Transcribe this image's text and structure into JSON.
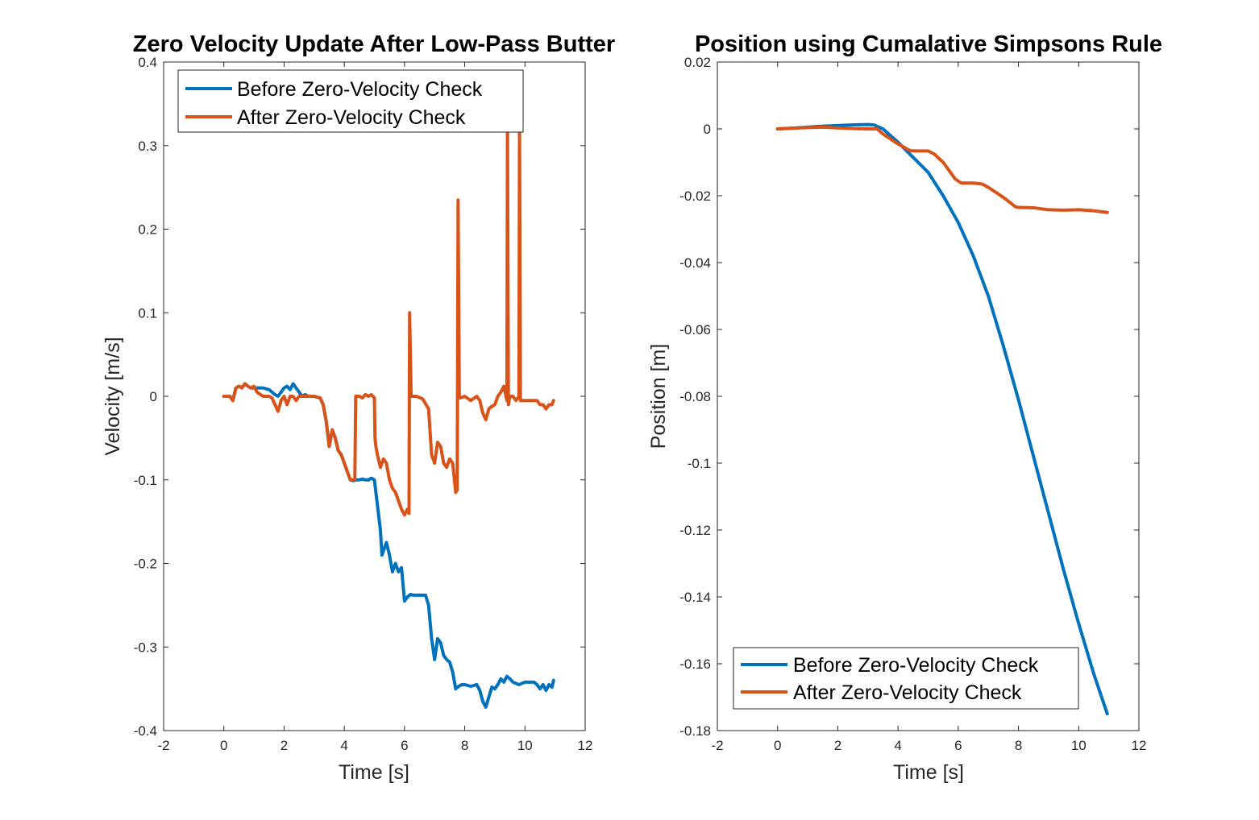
{
  "colors": {
    "before": "#0072BD",
    "after": "#D95319",
    "axis": "#262626",
    "background": "#ffffff"
  },
  "chart_data": [
    {
      "type": "line",
      "title": "Zero Velocity Update After Low-Pass Butter",
      "xlabel": "Time [s]",
      "ylabel": "Velocity [m/s]",
      "xlim": [
        -2,
        12
      ],
      "ylim": [
        -0.4,
        0.4
      ],
      "xticks": [
        -2,
        0,
        2,
        4,
        6,
        8,
        10,
        12
      ],
      "xtick_labels": [
        "-2",
        "0",
        "2",
        "4",
        "6",
        "8",
        "10",
        "12"
      ],
      "yticks": [
        -0.4,
        -0.3,
        -0.2,
        -0.1,
        0,
        0.1,
        0.2,
        0.3,
        0.4
      ],
      "ytick_labels": [
        "-0.4",
        "-0.3",
        "-0.2",
        "-0.1",
        "0",
        "0.1",
        "0.2",
        "0.3",
        "0.4"
      ],
      "grid": false,
      "legend_position": "top-left",
      "series": [
        {
          "name": "Before Zero-Velocity Check",
          "color": "#0072BD",
          "x": [
            0,
            0.2,
            0.3,
            0.4,
            0.5,
            0.6,
            0.7,
            0.8,
            0.9,
            1.0,
            1.1,
            1.3,
            1.5,
            1.6,
            1.7,
            1.8,
            1.9,
            2.0,
            2.1,
            2.2,
            2.3,
            2.4,
            2.5,
            2.6,
            2.7,
            2.8,
            3.0,
            3.2,
            3.3,
            3.4,
            3.5,
            3.6,
            3.7,
            3.8,
            3.9,
            4.0,
            4.1,
            4.2,
            4.3,
            4.4,
            4.5,
            4.6,
            4.7,
            4.8,
            4.9,
            5.0,
            5.1,
            5.2,
            5.25,
            5.3,
            5.4,
            5.5,
            5.6,
            5.7,
            5.8,
            5.9,
            6.0,
            6.1,
            6.2,
            6.3,
            6.5,
            6.7,
            6.8,
            6.9,
            7.0,
            7.1,
            7.2,
            7.3,
            7.4,
            7.5,
            7.6,
            7.7,
            7.8,
            7.9,
            8.0,
            8.2,
            8.4,
            8.5,
            8.6,
            8.7,
            8.8,
            8.9,
            9.0,
            9.1,
            9.2,
            9.3,
            9.4,
            9.5,
            9.6,
            9.8,
            10.0,
            10.2,
            10.3,
            10.4,
            10.5,
            10.6,
            10.7,
            10.8,
            10.9,
            10.95
          ],
          "y": [
            0,
            0,
            -0.005,
            0.01,
            0.012,
            0.01,
            0.015,
            0.012,
            0.01,
            0.01,
            0.01,
            0.01,
            0.008,
            0.005,
            0.002,
            0.0,
            0.005,
            0.01,
            0.012,
            0.008,
            0.015,
            0.01,
            0.005,
            0.0,
            0.002,
            0.0,
            0.0,
            -0.002,
            -0.01,
            -0.03,
            -0.06,
            -0.04,
            -0.05,
            -0.065,
            -0.07,
            -0.08,
            -0.09,
            -0.1,
            -0.101,
            -0.1,
            -0.1,
            -0.099,
            -0.1,
            -0.1,
            -0.098,
            -0.1,
            -0.13,
            -0.16,
            -0.19,
            -0.185,
            -0.175,
            -0.19,
            -0.21,
            -0.2,
            -0.21,
            -0.205,
            -0.245,
            -0.24,
            -0.237,
            -0.238,
            -0.238,
            -0.238,
            -0.25,
            -0.29,
            -0.315,
            -0.29,
            -0.295,
            -0.31,
            -0.315,
            -0.318,
            -0.33,
            -0.35,
            -0.347,
            -0.345,
            -0.345,
            -0.347,
            -0.345,
            -0.352,
            -0.365,
            -0.372,
            -0.36,
            -0.348,
            -0.35,
            -0.345,
            -0.338,
            -0.342,
            -0.335,
            -0.338,
            -0.342,
            -0.345,
            -0.342,
            -0.342,
            -0.342,
            -0.345,
            -0.35,
            -0.345,
            -0.352,
            -0.345,
            -0.348,
            -0.34
          ]
        },
        {
          "name": "After Zero-Velocity Check",
          "color": "#D95319",
          "x": [
            0,
            0.2,
            0.3,
            0.4,
            0.5,
            0.6,
            0.7,
            0.8,
            0.9,
            1.0,
            1.1,
            1.3,
            1.5,
            1.6,
            1.7,
            1.8,
            1.9,
            2.0,
            2.1,
            2.2,
            2.3,
            2.4,
            2.5,
            2.6,
            2.7,
            2.8,
            3.0,
            3.2,
            3.3,
            3.4,
            3.5,
            3.6,
            3.7,
            3.8,
            3.9,
            4.0,
            4.1,
            4.2,
            4.3,
            4.35,
            4.38,
            4.5,
            4.6,
            4.7,
            4.8,
            4.9,
            5.0,
            5.02,
            5.05,
            5.1,
            5.2,
            5.3,
            5.4,
            5.5,
            5.6,
            5.7,
            5.8,
            5.9,
            6.0,
            6.1,
            6.15,
            6.17,
            6.22,
            6.4,
            6.6,
            6.8,
            6.9,
            7.0,
            7.1,
            7.2,
            7.3,
            7.4,
            7.5,
            7.6,
            7.7,
            7.75,
            7.78,
            7.82,
            7.85,
            8.0,
            8.2,
            8.4,
            8.5,
            8.6,
            8.7,
            8.8,
            8.9,
            9.0,
            9.1,
            9.2,
            9.3,
            9.4,
            9.42,
            9.45,
            9.5,
            9.6,
            9.7,
            9.8,
            9.82,
            9.85,
            9.9,
            10.0,
            10.2,
            10.4,
            10.5,
            10.6,
            10.7,
            10.8,
            10.9,
            10.95
          ],
          "y": [
            0,
            0,
            -0.005,
            0.01,
            0.012,
            0.01,
            0.015,
            0.012,
            0.01,
            0.012,
            0.005,
            0.0,
            0.0,
            -0.002,
            -0.01,
            -0.018,
            -0.005,
            0.0,
            -0.01,
            0.0,
            0.0,
            -0.005,
            0.0,
            0.0,
            0.0,
            0.0,
            0.0,
            -0.002,
            -0.01,
            -0.03,
            -0.06,
            -0.04,
            -0.05,
            -0.065,
            -0.07,
            -0.08,
            -0.09,
            -0.1,
            -0.1,
            -0.1,
            0.0,
            0.0,
            -0.002,
            0.002,
            0.0,
            0.002,
            -0.002,
            -0.05,
            -0.06,
            -0.07,
            -0.085,
            -0.075,
            -0.08,
            -0.1,
            -0.11,
            -0.115,
            -0.125,
            -0.135,
            -0.142,
            -0.135,
            -0.14,
            0.1,
            0.0,
            0.0,
            -0.003,
            -0.015,
            -0.07,
            -0.08,
            -0.055,
            -0.06,
            -0.08,
            -0.085,
            -0.075,
            -0.08,
            -0.115,
            -0.112,
            0.235,
            0.0,
            -0.002,
            0.0,
            -0.005,
            0.0,
            -0.005,
            -0.02,
            -0.028,
            -0.015,
            -0.012,
            -0.01,
            0.0,
            0.005,
            0.012,
            -0.005,
            0.32,
            -0.01,
            0.0,
            0.0,
            -0.005,
            0.0,
            0.32,
            -0.005,
            -0.005,
            -0.005,
            -0.005,
            -0.005,
            -0.01,
            -0.01,
            -0.015,
            -0.01,
            -0.01,
            -0.005
          ]
        }
      ]
    },
    {
      "type": "line",
      "title": "Position using Cumalative Simpsons Rule",
      "xlabel": "Time [s]",
      "ylabel": "Position [m]",
      "xlim": [
        -2,
        12
      ],
      "ylim": [
        -0.18,
        0.02
      ],
      "xticks": [
        -2,
        0,
        2,
        4,
        6,
        8,
        10,
        12
      ],
      "xtick_labels": [
        "-2",
        "0",
        "2",
        "4",
        "6",
        "8",
        "10",
        "12"
      ],
      "yticks": [
        -0.18,
        -0.16,
        -0.14,
        -0.12,
        -0.1,
        -0.08,
        -0.06,
        -0.04,
        -0.02,
        0,
        0.02
      ],
      "ytick_labels": [
        "-0.18",
        "-0.16",
        "-0.14",
        "-0.12",
        "-0.1",
        "-0.08",
        "-0.06",
        "-0.04",
        "-0.02",
        "0",
        "0.02"
      ],
      "grid": false,
      "legend_position": "bottom-left",
      "series": [
        {
          "name": "Before Zero-Velocity Check",
          "color": "#0072BD",
          "x": [
            0,
            0.5,
            1,
            1.5,
            2,
            2.5,
            3.0,
            3.2,
            3.5,
            4.0,
            4.5,
            5.0,
            5.5,
            6.0,
            6.5,
            7.0,
            7.5,
            8.0,
            8.5,
            9.0,
            9.5,
            10.0,
            10.5,
            10.95
          ],
          "y": [
            0,
            0.0002,
            0.0005,
            0.0008,
            0.001,
            0.0012,
            0.0013,
            0.0012,
            0.0,
            -0.004,
            -0.0085,
            -0.013,
            -0.02,
            -0.028,
            -0.038,
            -0.05,
            -0.065,
            -0.081,
            -0.098,
            -0.115,
            -0.132,
            -0.148,
            -0.163,
            -0.175
          ]
        },
        {
          "name": "After Zero-Velocity Check",
          "color": "#D95319",
          "x": [
            0,
            0.5,
            1,
            1.5,
            2,
            2.5,
            3.0,
            3.3,
            3.5,
            4.0,
            4.4,
            4.6,
            5.0,
            5.2,
            5.5,
            5.9,
            6.1,
            6.5,
            6.8,
            7.0,
            7.5,
            7.9,
            8.0,
            8.5,
            9.0,
            9.5,
            10.0,
            10.5,
            10.95
          ],
          "y": [
            0,
            0.0002,
            0.0004,
            0.0005,
            0.0003,
            0.0001,
            0.0,
            0.0,
            -0.0015,
            -0.0045,
            -0.0065,
            -0.0066,
            -0.0066,
            -0.0075,
            -0.01,
            -0.015,
            -0.0162,
            -0.0162,
            -0.0165,
            -0.0175,
            -0.0205,
            -0.0233,
            -0.0235,
            -0.0236,
            -0.0242,
            -0.0243,
            -0.0242,
            -0.0245,
            -0.025
          ]
        }
      ]
    }
  ]
}
